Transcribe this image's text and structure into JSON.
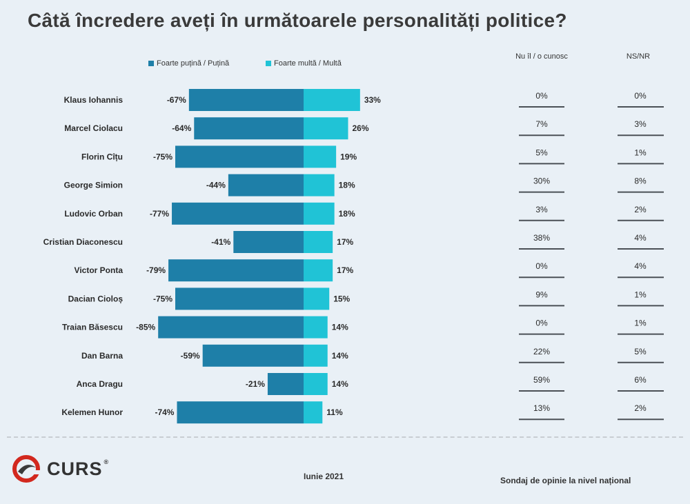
{
  "title": "Câtă încredere aveți în următoarele personalități politice?",
  "footer": {
    "logo_text": "CURS",
    "date": "Iunie 2021",
    "note": "Sondaj de opinie la nivel național"
  },
  "colors": {
    "negative": "#1e7fa8",
    "positive": "#20c3d6",
    "line": "#4a4f55"
  },
  "chart_data": {
    "type": "bar",
    "orientation": "horizontal-diverging",
    "title": "Câtă încredere aveți în următoarele personalități politice?",
    "categories": [
      "Klaus Iohannis",
      "Marcel Ciolacu",
      "Florin Cîțu",
      "George Simion",
      "Ludovic Orban",
      "Cristian Diaconescu",
      "Victor Ponta",
      "Dacian Cioloș",
      "Traian Băsescu",
      "Dan Barna",
      "Anca Dragu",
      "Kelemen Hunor"
    ],
    "series": [
      {
        "name": "Foarte puțină / Puțină",
        "values": [
          -67,
          -64,
          -75,
          -44,
          -77,
          -41,
          -79,
          -75,
          -85,
          -59,
          -21,
          -74
        ],
        "labels": [
          "-67%",
          "-64%",
          "-75%",
          "-44%",
          "-77%",
          "-41%",
          "-79%",
          "-75%",
          "-85%",
          "-59%",
          "-21%",
          "-74%"
        ]
      },
      {
        "name": "Foarte multă / Multă",
        "values": [
          33,
          26,
          19,
          18,
          18,
          17,
          17,
          15,
          14,
          14,
          14,
          11
        ],
        "labels": [
          "33%",
          "26%",
          "19%",
          "18%",
          "18%",
          "17%",
          "17%",
          "15%",
          "14%",
          "14%",
          "14%",
          "11%"
        ]
      }
    ],
    "extra_columns": [
      {
        "header": "Nu îl / o cunosc",
        "values": [
          "0%",
          "7%",
          "5%",
          "30%",
          "3%",
          "38%",
          "0%",
          "9%",
          "0%",
          "22%",
          "59%",
          "13%"
        ]
      },
      {
        "header": "NS/NR",
        "values": [
          "0%",
          "3%",
          "1%",
          "8%",
          "2%",
          "4%",
          "4%",
          "1%",
          "1%",
          "5%",
          "6%",
          "2%"
        ]
      }
    ]
  }
}
